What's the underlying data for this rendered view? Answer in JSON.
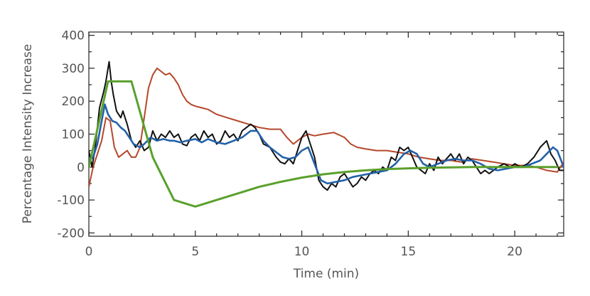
{
  "chart_data": {
    "type": "line",
    "title": "",
    "xlabel": "Time (min)",
    "ylabel": "Percentage Intensity Increase",
    "xlim": [
      0,
      22.3
    ],
    "ylim": [
      -210,
      410
    ],
    "x_ticks": [
      0,
      5,
      10,
      15,
      20
    ],
    "y_ticks": [
      -200,
      -100,
      0,
      100,
      200,
      300,
      400
    ],
    "grid": false,
    "legend": "none",
    "series": [
      {
        "color": "#b5472a",
        "points": [
          [
            0,
            -60
          ],
          [
            0.2,
            0
          ],
          [
            0.4,
            40
          ],
          [
            0.6,
            80
          ],
          [
            0.8,
            150
          ],
          [
            1.0,
            140
          ],
          [
            1.2,
            60
          ],
          [
            1.4,
            30
          ],
          [
            1.6,
            40
          ],
          [
            1.8,
            50
          ],
          [
            2.0,
            30
          ],
          [
            2.2,
            30
          ],
          [
            2.4,
            60
          ],
          [
            2.6,
            150
          ],
          [
            2.8,
            240
          ],
          [
            3.0,
            280
          ],
          [
            3.2,
            300
          ],
          [
            3.4,
            290
          ],
          [
            3.6,
            280
          ],
          [
            3.8,
            285
          ],
          [
            4.0,
            270
          ],
          [
            4.2,
            250
          ],
          [
            4.4,
            220
          ],
          [
            4.6,
            200
          ],
          [
            4.8,
            190
          ],
          [
            5.0,
            185
          ],
          [
            5.3,
            180
          ],
          [
            5.6,
            175
          ],
          [
            6.0,
            160
          ],
          [
            6.5,
            150
          ],
          [
            7.0,
            140
          ],
          [
            7.5,
            130
          ],
          [
            8.0,
            120
          ],
          [
            8.5,
            115
          ],
          [
            9.0,
            115
          ],
          [
            9.3,
            90
          ],
          [
            9.6,
            70
          ],
          [
            10.0,
            90
          ],
          [
            10.3,
            100
          ],
          [
            10.6,
            95
          ],
          [
            11.0,
            100
          ],
          [
            11.5,
            105
          ],
          [
            12.0,
            90
          ],
          [
            12.3,
            70
          ],
          [
            12.6,
            60
          ],
          [
            13.0,
            55
          ],
          [
            13.5,
            50
          ],
          [
            14.0,
            50
          ],
          [
            14.5,
            45
          ],
          [
            15.0,
            40
          ],
          [
            15.5,
            30
          ],
          [
            16.0,
            25
          ],
          [
            16.5,
            20
          ],
          [
            17.0,
            20
          ],
          [
            17.5,
            15
          ],
          [
            18.0,
            25
          ],
          [
            18.5,
            20
          ],
          [
            19.0,
            15
          ],
          [
            19.5,
            10
          ],
          [
            20.0,
            5
          ],
          [
            20.5,
            5
          ],
          [
            21.0,
            0
          ],
          [
            21.5,
            -10
          ],
          [
            22.0,
            -15
          ],
          [
            22.3,
            15
          ]
        ]
      },
      {
        "color": "#111111",
        "points": [
          [
            0,
            50
          ],
          [
            0.15,
            0
          ],
          [
            0.3,
            60
          ],
          [
            0.5,
            180
          ],
          [
            0.7,
            230
          ],
          [
            0.8,
            260
          ],
          [
            0.9,
            300
          ],
          [
            0.95,
            320
          ],
          [
            1.05,
            260
          ],
          [
            1.15,
            220
          ],
          [
            1.3,
            170
          ],
          [
            1.5,
            150
          ],
          [
            1.6,
            170
          ],
          [
            1.7,
            150
          ],
          [
            1.8,
            130
          ],
          [
            2.0,
            80
          ],
          [
            2.2,
            60
          ],
          [
            2.4,
            80
          ],
          [
            2.6,
            50
          ],
          [
            2.8,
            60
          ],
          [
            3.0,
            110
          ],
          [
            3.2,
            80
          ],
          [
            3.4,
            100
          ],
          [
            3.6,
            90
          ],
          [
            3.8,
            110
          ],
          [
            4.0,
            90
          ],
          [
            4.2,
            100
          ],
          [
            4.4,
            70
          ],
          [
            4.6,
            65
          ],
          [
            4.8,
            90
          ],
          [
            5.0,
            100
          ],
          [
            5.2,
            80
          ],
          [
            5.4,
            110
          ],
          [
            5.6,
            90
          ],
          [
            5.8,
            100
          ],
          [
            6.0,
            70
          ],
          [
            6.2,
            80
          ],
          [
            6.4,
            110
          ],
          [
            6.6,
            90
          ],
          [
            6.8,
            100
          ],
          [
            7.0,
            80
          ],
          [
            7.2,
            110
          ],
          [
            7.4,
            120
          ],
          [
            7.6,
            130
          ],
          [
            7.8,
            120
          ],
          [
            8.0,
            100
          ],
          [
            8.2,
            70
          ],
          [
            8.5,
            60
          ],
          [
            8.8,
            30
          ],
          [
            9.0,
            15
          ],
          [
            9.2,
            10
          ],
          [
            9.4,
            25
          ],
          [
            9.6,
            10
          ],
          [
            9.8,
            50
          ],
          [
            10.0,
            90
          ],
          [
            10.2,
            110
          ],
          [
            10.4,
            70
          ],
          [
            10.6,
            30
          ],
          [
            10.8,
            -40
          ],
          [
            11.0,
            -60
          ],
          [
            11.2,
            -70
          ],
          [
            11.4,
            -50
          ],
          [
            11.6,
            -60
          ],
          [
            11.8,
            -30
          ],
          [
            12.0,
            -20
          ],
          [
            12.2,
            -40
          ],
          [
            12.4,
            -60
          ],
          [
            12.6,
            -50
          ],
          [
            12.8,
            -30
          ],
          [
            13.0,
            -40
          ],
          [
            13.2,
            -20
          ],
          [
            13.4,
            -10
          ],
          [
            13.6,
            -20
          ],
          [
            13.8,
            0
          ],
          [
            14.0,
            -10
          ],
          [
            14.2,
            30
          ],
          [
            14.4,
            20
          ],
          [
            14.6,
            60
          ],
          [
            14.8,
            50
          ],
          [
            15.0,
            60
          ],
          [
            15.2,
            30
          ],
          [
            15.4,
            0
          ],
          [
            15.6,
            -10
          ],
          [
            15.8,
            -20
          ],
          [
            16.0,
            10
          ],
          [
            16.2,
            -10
          ],
          [
            16.4,
            30
          ],
          [
            16.6,
            10
          ],
          [
            16.8,
            25
          ],
          [
            17.0,
            40
          ],
          [
            17.2,
            20
          ],
          [
            17.4,
            40
          ],
          [
            17.6,
            10
          ],
          [
            17.8,
            30
          ],
          [
            18.0,
            20
          ],
          [
            18.2,
            0
          ],
          [
            18.4,
            -20
          ],
          [
            18.6,
            -10
          ],
          [
            18.8,
            -20
          ],
          [
            19.0,
            -10
          ],
          [
            19.2,
            0
          ],
          [
            19.5,
            10
          ],
          [
            19.8,
            0
          ],
          [
            20.0,
            10
          ],
          [
            20.3,
            0
          ],
          [
            20.6,
            10
          ],
          [
            20.9,
            30
          ],
          [
            21.2,
            60
          ],
          [
            21.5,
            80
          ],
          [
            21.7,
            40
          ],
          [
            21.9,
            20
          ],
          [
            22.1,
            -10
          ],
          [
            22.3,
            -10
          ]
        ]
      },
      {
        "color": "#2361a8",
        "points": [
          [
            0,
            20
          ],
          [
            0.2,
            30
          ],
          [
            0.4,
            70
          ],
          [
            0.6,
            140
          ],
          [
            0.75,
            190
          ],
          [
            0.9,
            160
          ],
          [
            1.1,
            140
          ],
          [
            1.3,
            135
          ],
          [
            1.5,
            120
          ],
          [
            1.7,
            110
          ],
          [
            1.9,
            90
          ],
          [
            2.1,
            70
          ],
          [
            2.4,
            60
          ],
          [
            2.6,
            70
          ],
          [
            2.9,
            90
          ],
          [
            3.2,
            80
          ],
          [
            3.5,
            85
          ],
          [
            3.8,
            80
          ],
          [
            4.0,
            80
          ],
          [
            4.3,
            75
          ],
          [
            4.6,
            80
          ],
          [
            5.0,
            85
          ],
          [
            5.3,
            75
          ],
          [
            5.6,
            85
          ],
          [
            6.0,
            75
          ],
          [
            6.4,
            70
          ],
          [
            6.8,
            80
          ],
          [
            7.2,
            90
          ],
          [
            7.6,
            110
          ],
          [
            7.9,
            110
          ],
          [
            8.2,
            80
          ],
          [
            8.5,
            60
          ],
          [
            8.8,
            45
          ],
          [
            9.1,
            30
          ],
          [
            9.4,
            25
          ],
          [
            9.7,
            30
          ],
          [
            10.0,
            50
          ],
          [
            10.3,
            60
          ],
          [
            10.6,
            10
          ],
          [
            10.9,
            -40
          ],
          [
            11.2,
            -50
          ],
          [
            11.6,
            -45
          ],
          [
            12.0,
            -40
          ],
          [
            12.4,
            -30
          ],
          [
            12.8,
            -25
          ],
          [
            13.2,
            -20
          ],
          [
            13.6,
            -15
          ],
          [
            14.0,
            -10
          ],
          [
            14.4,
            10
          ],
          [
            14.8,
            40
          ],
          [
            15.1,
            50
          ],
          [
            15.4,
            40
          ],
          [
            15.7,
            10
          ],
          [
            16.0,
            0
          ],
          [
            16.4,
            10
          ],
          [
            16.8,
            20
          ],
          [
            17.2,
            25
          ],
          [
            17.6,
            20
          ],
          [
            18.0,
            20
          ],
          [
            18.4,
            10
          ],
          [
            18.8,
            -5
          ],
          [
            19.2,
            -10
          ],
          [
            19.6,
            -5
          ],
          [
            20.0,
            0
          ],
          [
            20.4,
            0
          ],
          [
            20.8,
            10
          ],
          [
            21.2,
            20
          ],
          [
            21.5,
            40
          ],
          [
            21.8,
            60
          ],
          [
            22.0,
            50
          ],
          [
            22.3,
            0
          ]
        ]
      },
      {
        "color": "#5aa02c",
        "points": [
          [
            0,
            0
          ],
          [
            0.9,
            260
          ],
          [
            2.0,
            260
          ],
          [
            3.0,
            30
          ],
          [
            4.0,
            -100
          ],
          [
            5.0,
            -120
          ],
          [
            6.0,
            -100
          ],
          [
            7.0,
            -80
          ],
          [
            8.0,
            -60
          ],
          [
            9.0,
            -45
          ],
          [
            10.0,
            -32
          ],
          [
            11.0,
            -22
          ],
          [
            12.0,
            -15
          ],
          [
            13.0,
            -10
          ],
          [
            14.0,
            -6
          ],
          [
            15.0,
            -4
          ],
          [
            16.0,
            -2
          ],
          [
            17.0,
            -1
          ],
          [
            18.0,
            0
          ],
          [
            19.0,
            0
          ],
          [
            20.0,
            0
          ],
          [
            21.0,
            0
          ],
          [
            22.0,
            0
          ]
        ]
      }
    ]
  }
}
